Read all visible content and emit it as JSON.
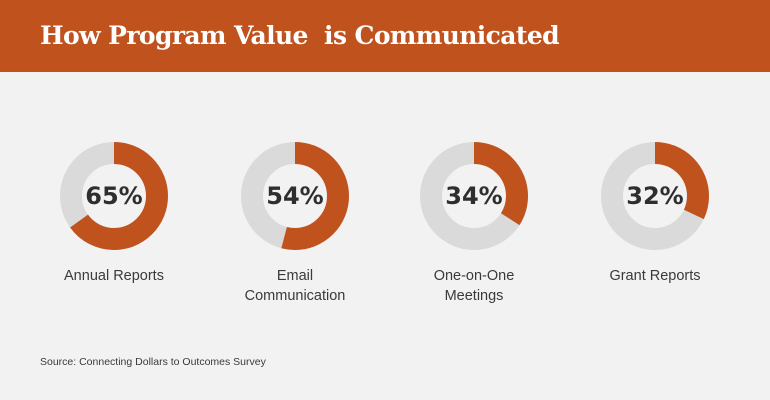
{
  "header": {
    "title": "How Program Value  is Communicated"
  },
  "chart_data": {
    "type": "pie",
    "title": "How Program Value  is Communicated",
    "items": [
      {
        "label": "Annual Reports",
        "lines": [
          "Annual Reports"
        ],
        "value": 65,
        "display": "65%"
      },
      {
        "label": "Email Communication",
        "lines": [
          "Email",
          "Communication"
        ],
        "value": 54,
        "display": "54%"
      },
      {
        "label": "One-on-One Meetings",
        "lines": [
          "One-on-One",
          "Meetings"
        ],
        "value": 34,
        "display": "34%"
      },
      {
        "label": "Grant Reports",
        "lines": [
          "Grant Reports"
        ],
        "value": 32,
        "display": "32%"
      }
    ],
    "colors": {
      "filled": "#c0521e",
      "remainder": "#dadada",
      "header": "#c0521e"
    }
  },
  "footer": {
    "source": "Source: Connecting Dollars to Outcomes Survey"
  }
}
